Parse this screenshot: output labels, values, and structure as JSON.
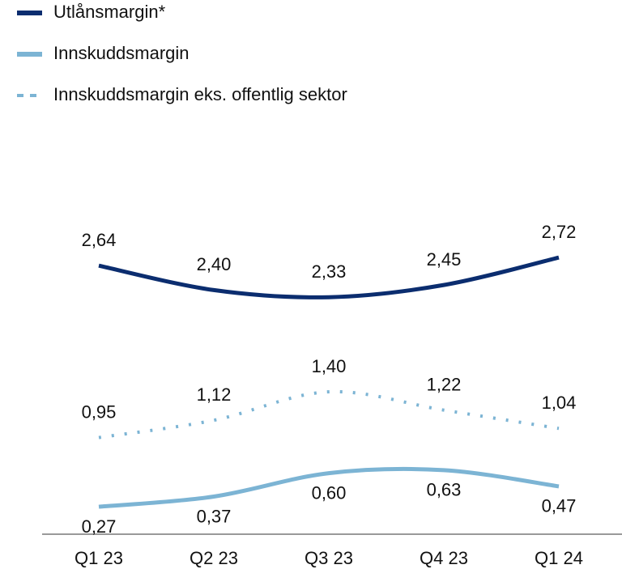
{
  "chart_data": {
    "type": "line",
    "categories": [
      "Q1 23",
      "Q2 23",
      "Q3 23",
      "Q4 23",
      "Q1 24"
    ],
    "ylim": [
      0,
      3
    ],
    "series": [
      {
        "name": "Utlånsmargin*",
        "color": "#0b2d6f",
        "line_style": "solid",
        "label_position": "above",
        "values": [
          2.64,
          2.4,
          2.33,
          2.45,
          2.72
        ],
        "value_labels": [
          "2,64",
          "2,40",
          "2,33",
          "2,45",
          "2,72"
        ]
      },
      {
        "name": "Innskuddsmargin",
        "color": "#7cb4d4",
        "line_style": "solid",
        "label_position": "below",
        "values": [
          0.27,
          0.37,
          0.6,
          0.63,
          0.47
        ],
        "value_labels": [
          "0,27",
          "0,37",
          "0,60",
          "0,63",
          "0,47"
        ]
      },
      {
        "name": "Innskuddsmargin eks. offentlig sektor",
        "color": "#7cb4d4",
        "line_style": "dotted",
        "label_position": "above",
        "values": [
          0.95,
          1.12,
          1.4,
          1.22,
          1.04
        ],
        "value_labels": [
          "0,95",
          "1,12",
          "1,40",
          "1,22",
          "1,04"
        ]
      }
    ]
  }
}
